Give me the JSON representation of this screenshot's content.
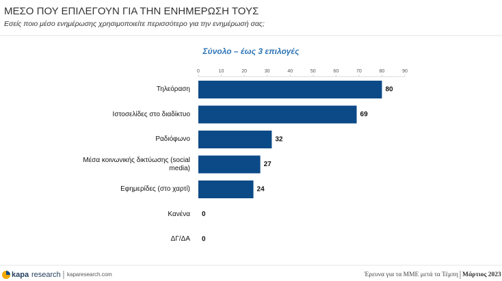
{
  "header": {
    "title": "ΜΕΣΟ ΠΟΥ ΕΠΙΛΕΓΟΥΝ ΓΙΑ ΤΗΝ ΕΝΗΜΕΡΩΣΗ ΤΟΥΣ",
    "subtitle": "Εσείς ποιο μέσο ενημέρωσης χρησιμοποιείτε περισσότερο για την ενημέρωσή σας;"
  },
  "chart_data": {
    "type": "barh",
    "title": "Σύνολο – έως 3 επιλογές",
    "categories": [
      "Τηλεόραση",
      "Ιστοσελίδες στο διαδίκτυο",
      "Ραδιόφωνο",
      "Μέσα κοινωνικής δικτύωσης (social media)",
      "Εφημερίδες (στο χαρτί)",
      "Κανένα",
      "ΔΓ/ΔΑ"
    ],
    "values": [
      80,
      69,
      32,
      27,
      24,
      0,
      0
    ],
    "color": "#0c4a87",
    "xlim": [
      0,
      90
    ],
    "xticks": [
      0,
      10,
      20,
      30,
      40,
      50,
      60,
      70,
      80,
      90
    ]
  },
  "footer": {
    "logo_bold": "kapa",
    "logo_light": "research",
    "website": "kaparesearch.com",
    "survey": "Έρευνα για τα ΜΜΕ μετά τα Τέμπη",
    "date": "Μάρτιος 2023"
  }
}
